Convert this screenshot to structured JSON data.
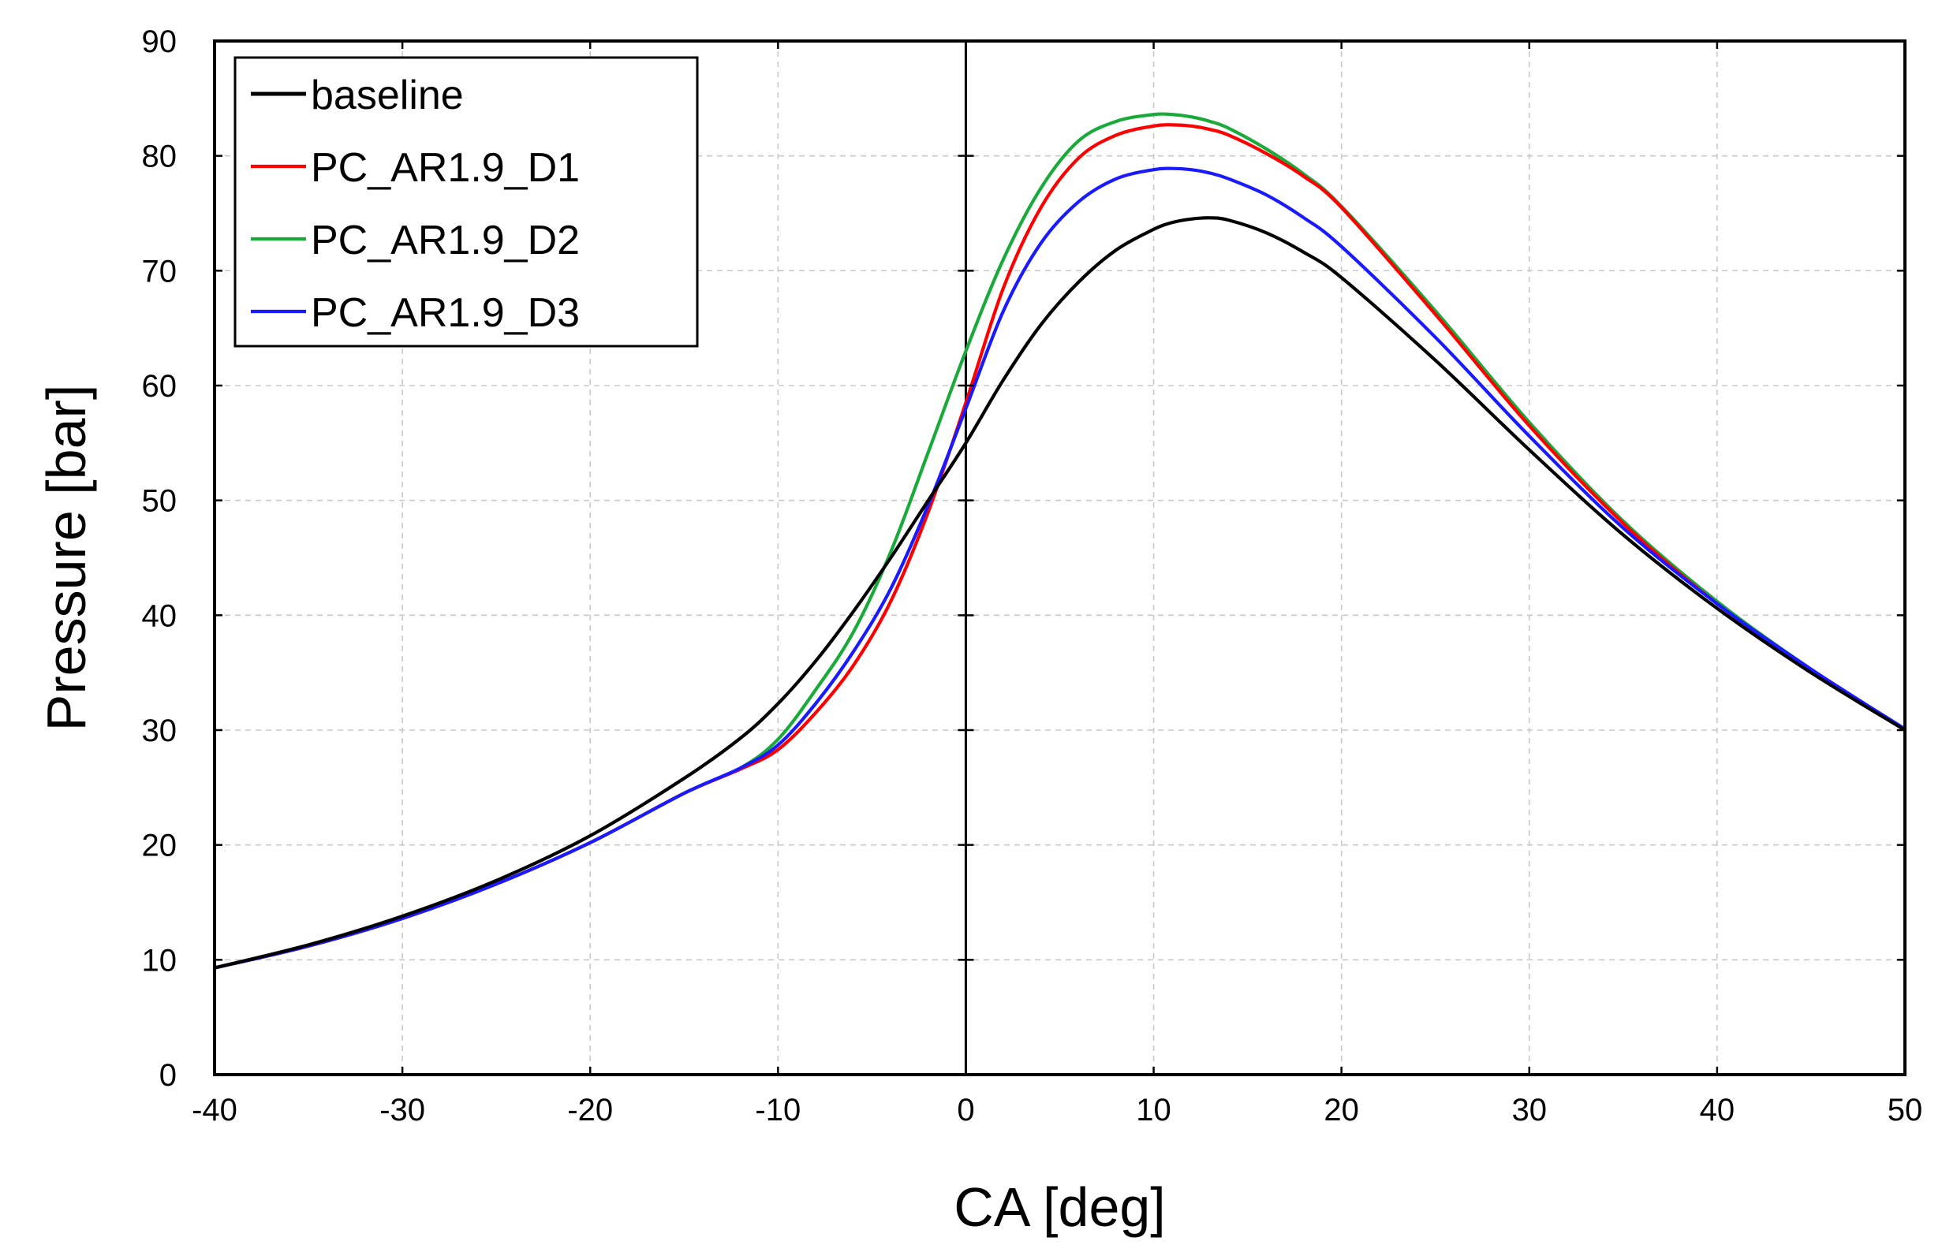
{
  "chart_data": {
    "type": "line",
    "title": "",
    "xlabel": "CA [deg]",
    "ylabel": "Pressure [bar]",
    "xlim": [
      -40,
      50
    ],
    "ylim": [
      0,
      90
    ],
    "xticks": [
      -40,
      -30,
      -20,
      -10,
      0,
      10,
      20,
      30,
      40,
      50
    ],
    "yticks": [
      0,
      10,
      20,
      30,
      40,
      50,
      60,
      70,
      80,
      90
    ],
    "grid": true,
    "vertical_reference_line_x": 0,
    "legend_position": "top-left",
    "x": [
      -40,
      -35,
      -30,
      -25,
      -20,
      -15,
      -12,
      -10,
      -8,
      -6,
      -4,
      -2,
      0,
      2,
      4,
      6,
      8,
      10,
      11,
      12,
      13,
      14,
      16,
      18,
      20,
      25,
      30,
      35,
      40,
      45,
      50
    ],
    "series": [
      {
        "name": "baseline",
        "color": "#000000",
        "values": [
          9.3,
          11.3,
          13.8,
          16.9,
          20.8,
          25.8,
          29.3,
          32.3,
          36.0,
          40.3,
          45.0,
          50.0,
          55.0,
          60.5,
          65.3,
          69.0,
          71.8,
          73.6,
          74.2,
          74.5,
          74.6,
          74.4,
          73.3,
          71.6,
          69.4,
          62.2,
          54.4,
          47.0,
          40.6,
          35.0,
          30.0
        ]
      },
      {
        "name": "PC_AR1.9_D1",
        "color": "#ff0000",
        "values": [
          9.3,
          11.2,
          13.6,
          16.6,
          20.2,
          24.5,
          26.6,
          28.3,
          31.5,
          35.6,
          41.2,
          49.0,
          58.5,
          68.5,
          75.5,
          79.8,
          81.8,
          82.6,
          82.7,
          82.6,
          82.3,
          81.8,
          80.2,
          78.2,
          75.5,
          66.2,
          56.5,
          48.0,
          41.0,
          35.2,
          30.0
        ]
      },
      {
        "name": "PC_AR1.9_D2",
        "color": "#1aaa3a",
        "values": [
          9.3,
          11.2,
          13.6,
          16.6,
          20.2,
          24.5,
          26.7,
          29.2,
          33.5,
          38.5,
          45.5,
          54.2,
          63.0,
          71.0,
          77.2,
          81.3,
          83.0,
          83.6,
          83.6,
          83.4,
          83.0,
          82.4,
          80.6,
          78.4,
          75.6,
          66.5,
          56.8,
          48.2,
          41.2,
          35.3,
          30.0
        ]
      },
      {
        "name": "PC_AR1.9_D3",
        "color": "#1a1aff",
        "values": [
          9.3,
          11.2,
          13.6,
          16.6,
          20.2,
          24.5,
          26.7,
          28.7,
          32.3,
          36.8,
          42.3,
          49.6,
          58.0,
          66.5,
          72.4,
          76.0,
          78.0,
          78.8,
          78.9,
          78.8,
          78.5,
          78.0,
          76.6,
          74.6,
          72.1,
          64.2,
          55.6,
          47.6,
          41.0,
          35.3,
          30.1
        ]
      }
    ]
  }
}
